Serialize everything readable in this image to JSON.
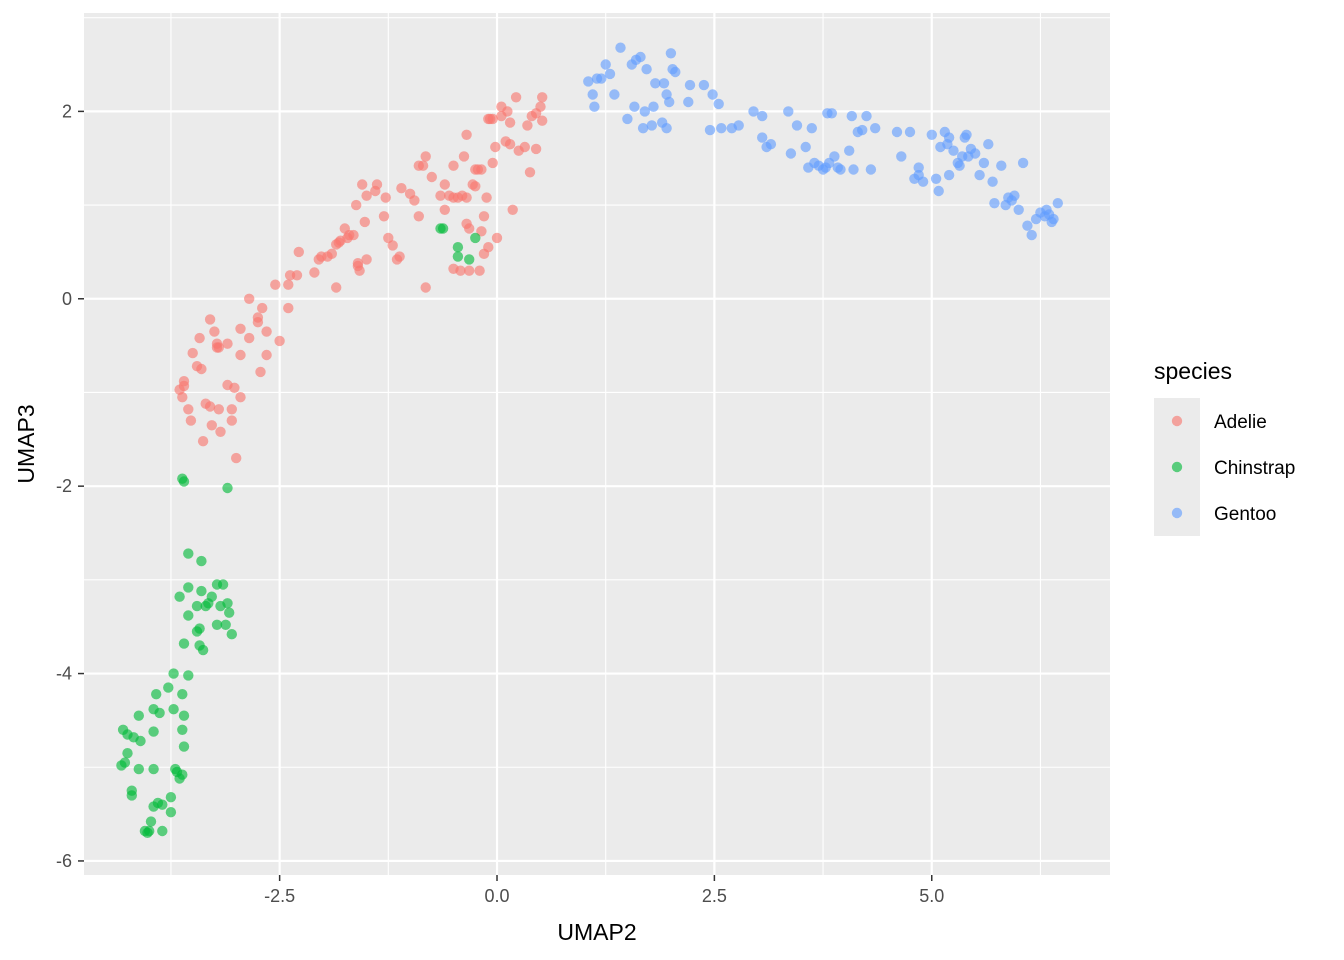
{
  "chart_data": {
    "type": "scatter",
    "xlabel": "UMAP2",
    "ylabel": "UMAP3",
    "xlim": [
      -4.75,
      7.05
    ],
    "ylim": [
      -6.15,
      3.05
    ],
    "x_ticks": [
      -2.5,
      0.0,
      2.5,
      5.0
    ],
    "x_tick_labels": [
      "-2.5",
      "0.0",
      "2.5",
      "5.0"
    ],
    "y_ticks": [
      -6,
      -4,
      -2,
      0,
      2
    ],
    "y_tick_labels": [
      "-6",
      "-4",
      "-2",
      "0",
      "2"
    ],
    "grid": true,
    "legend_title": "species",
    "legend_position": "right",
    "series": [
      {
        "name": "Adelie",
        "color": "#F8766D",
        "points": [
          [
            -3.65,
            -0.97
          ],
          [
            -3.6,
            -0.88
          ],
          [
            -3.6,
            -0.93
          ],
          [
            -3.62,
            -1.05
          ],
          [
            -3.55,
            -1.18
          ],
          [
            -3.52,
            -1.3
          ],
          [
            -3.5,
            -0.58
          ],
          [
            -3.45,
            -0.72
          ],
          [
            -3.42,
            -0.42
          ],
          [
            -3.4,
            -0.75
          ],
          [
            -3.38,
            -1.52
          ],
          [
            -3.35,
            -1.12
          ],
          [
            -3.3,
            -1.15
          ],
          [
            -3.3,
            -0.22
          ],
          [
            -3.28,
            -1.35
          ],
          [
            -3.25,
            -0.35
          ],
          [
            -3.22,
            -0.48
          ],
          [
            -3.22,
            -0.52
          ],
          [
            -3.2,
            -0.52
          ],
          [
            -3.2,
            -1.18
          ],
          [
            -3.18,
            -1.42
          ],
          [
            -3.1,
            -0.48
          ],
          [
            -3.1,
            -0.92
          ],
          [
            -3.05,
            -1.3
          ],
          [
            -3.05,
            -1.18
          ],
          [
            -3.02,
            -0.95
          ],
          [
            -3.0,
            -1.7
          ],
          [
            -2.95,
            -0.32
          ],
          [
            -2.95,
            -0.6
          ],
          [
            -2.95,
            -1.05
          ],
          [
            -2.85,
            -0.42
          ],
          [
            -2.85,
            0.0
          ],
          [
            -2.75,
            -0.25
          ],
          [
            -2.75,
            -0.2
          ],
          [
            -2.72,
            -0.78
          ],
          [
            -2.7,
            -0.1
          ],
          [
            -2.65,
            -0.35
          ],
          [
            -2.65,
            -0.6
          ],
          [
            -2.55,
            0.15
          ],
          [
            -2.5,
            -0.45
          ],
          [
            -2.4,
            -0.1
          ],
          [
            -2.4,
            0.15
          ],
          [
            -2.38,
            0.25
          ],
          [
            -2.3,
            0.25
          ],
          [
            -2.28,
            0.5
          ],
          [
            -2.1,
            0.28
          ],
          [
            -2.05,
            0.42
          ],
          [
            -2.02,
            0.45
          ],
          [
            -1.95,
            0.45
          ],
          [
            -1.9,
            0.48
          ],
          [
            -1.85,
            0.58
          ],
          [
            -1.85,
            0.12
          ],
          [
            -1.82,
            0.6
          ],
          [
            -1.8,
            0.62
          ],
          [
            -1.75,
            0.75
          ],
          [
            -1.72,
            0.65
          ],
          [
            -1.7,
            0.68
          ],
          [
            -1.65,
            0.68
          ],
          [
            -1.62,
            1.0
          ],
          [
            -1.6,
            0.35
          ],
          [
            -1.6,
            0.38
          ],
          [
            -1.58,
            0.3
          ],
          [
            -1.55,
            1.22
          ],
          [
            -1.52,
            0.82
          ],
          [
            -1.5,
            0.42
          ],
          [
            -1.5,
            1.1
          ],
          [
            -1.4,
            1.15
          ],
          [
            -1.38,
            1.22
          ],
          [
            -1.3,
            0.88
          ],
          [
            -1.28,
            1.08
          ],
          [
            -1.25,
            0.65
          ],
          [
            -1.2,
            0.57
          ],
          [
            -1.15,
            0.42
          ],
          [
            -1.12,
            0.45
          ],
          [
            -1.1,
            1.18
          ],
          [
            -1.0,
            1.12
          ],
          [
            -0.95,
            1.05
          ],
          [
            -0.9,
            1.42
          ],
          [
            -0.9,
            0.88
          ],
          [
            -0.85,
            1.42
          ],
          [
            -0.82,
            1.52
          ],
          [
            -0.82,
            0.12
          ],
          [
            -0.75,
            1.3
          ],
          [
            -0.65,
            1.1
          ],
          [
            -0.6,
            0.95
          ],
          [
            -0.6,
            1.22
          ],
          [
            -0.55,
            1.1
          ],
          [
            -0.5,
            0.32
          ],
          [
            -0.5,
            1.42
          ],
          [
            -0.5,
            1.08
          ],
          [
            -0.45,
            1.08
          ],
          [
            -0.42,
            0.3
          ],
          [
            -0.4,
            1.1
          ],
          [
            -0.38,
            1.52
          ],
          [
            -0.35,
            1.75
          ],
          [
            -0.35,
            0.8
          ],
          [
            -0.35,
            1.08
          ],
          [
            -0.32,
            0.3
          ],
          [
            -0.32,
            0.75
          ],
          [
            -0.28,
            1.22
          ],
          [
            -0.25,
            1.38
          ],
          [
            -0.25,
            1.2
          ],
          [
            -0.22,
            1.38
          ],
          [
            -0.2,
            0.3
          ],
          [
            -0.18,
            0.72
          ],
          [
            -0.18,
            1.38
          ],
          [
            -0.15,
            0.48
          ],
          [
            -0.15,
            0.88
          ],
          [
            -0.12,
            1.08
          ],
          [
            -0.1,
            0.55
          ],
          [
            -0.1,
            1.92
          ],
          [
            -0.08,
            1.92
          ],
          [
            -0.05,
            1.45
          ],
          [
            -0.05,
            1.92
          ],
          [
            -0.02,
            1.62
          ],
          [
            0.0,
            0.65
          ],
          [
            0.05,
            2.05
          ],
          [
            0.05,
            1.95
          ],
          [
            0.1,
            1.68
          ],
          [
            0.12,
            2.0
          ],
          [
            0.15,
            1.65
          ],
          [
            0.15,
            1.88
          ],
          [
            0.18,
            0.95
          ],
          [
            0.22,
            2.15
          ],
          [
            0.25,
            1.58
          ],
          [
            0.32,
            1.62
          ],
          [
            0.35,
            1.85
          ],
          [
            0.38,
            1.35
          ],
          [
            0.4,
            1.95
          ],
          [
            0.45,
            1.6
          ],
          [
            0.45,
            1.98
          ],
          [
            0.5,
            2.05
          ],
          [
            0.52,
            2.15
          ],
          [
            0.52,
            1.9
          ]
        ]
      },
      {
        "name": "Chinstrap",
        "color": "#00BA38",
        "points": [
          [
            -3.62,
            -1.92
          ],
          [
            -3.6,
            -1.95
          ],
          [
            -3.1,
            -2.02
          ],
          [
            -3.55,
            -2.72
          ],
          [
            -3.4,
            -2.8
          ],
          [
            -3.65,
            -3.18
          ],
          [
            -3.55,
            -3.08
          ],
          [
            -3.45,
            -3.28
          ],
          [
            -3.4,
            -3.12
          ],
          [
            -3.32,
            -3.25
          ],
          [
            -3.28,
            -3.18
          ],
          [
            -3.22,
            -3.05
          ],
          [
            -3.18,
            -3.28
          ],
          [
            -3.15,
            -3.05
          ],
          [
            -3.1,
            -3.25
          ],
          [
            -3.08,
            -3.35
          ],
          [
            -3.05,
            -3.58
          ],
          [
            -3.12,
            -3.48
          ],
          [
            -3.22,
            -3.48
          ],
          [
            -3.35,
            -3.28
          ],
          [
            -3.42,
            -3.52
          ],
          [
            -3.45,
            -3.55
          ],
          [
            -3.42,
            -3.7
          ],
          [
            -3.38,
            -3.75
          ],
          [
            -3.55,
            -3.38
          ],
          [
            -3.6,
            -3.68
          ],
          [
            -3.55,
            -4.02
          ],
          [
            -3.62,
            -4.22
          ],
          [
            -3.72,
            -4.0
          ],
          [
            -3.78,
            -4.15
          ],
          [
            -3.72,
            -4.38
          ],
          [
            -3.6,
            -4.45
          ],
          [
            -3.6,
            -4.78
          ],
          [
            -3.62,
            -4.6
          ],
          [
            -3.62,
            -5.08
          ],
          [
            -3.65,
            -5.12
          ],
          [
            -3.68,
            -5.05
          ],
          [
            -3.7,
            -5.02
          ],
          [
            -3.75,
            -5.32
          ],
          [
            -3.75,
            -5.48
          ],
          [
            -3.88,
            -4.42
          ],
          [
            -3.92,
            -4.22
          ],
          [
            -3.95,
            -4.38
          ],
          [
            -3.95,
            -4.62
          ],
          [
            -3.95,
            -5.02
          ],
          [
            -3.9,
            -5.38
          ],
          [
            -3.95,
            -5.42
          ],
          [
            -3.98,
            -5.58
          ],
          [
            -4.0,
            -5.68
          ],
          [
            -4.02,
            -5.7
          ],
          [
            -4.05,
            -5.68
          ],
          [
            -3.85,
            -5.4
          ],
          [
            -3.85,
            -5.68
          ],
          [
            -4.1,
            -4.72
          ],
          [
            -4.12,
            -4.45
          ],
          [
            -4.18,
            -4.68
          ],
          [
            -4.25,
            -4.65
          ],
          [
            -4.3,
            -4.6
          ],
          [
            -4.25,
            -4.85
          ],
          [
            -4.28,
            -4.95
          ],
          [
            -4.32,
            -4.98
          ],
          [
            -4.2,
            -5.25
          ],
          [
            -4.2,
            -5.3
          ],
          [
            -4.12,
            -5.02
          ],
          [
            -0.62,
            0.75
          ],
          [
            -0.65,
            0.75
          ],
          [
            -0.45,
            0.55
          ],
          [
            -0.45,
            0.45
          ],
          [
            -0.32,
            0.42
          ],
          [
            -0.25,
            0.65
          ]
        ]
      },
      {
        "name": "Gentoo",
        "color": "#619CFF",
        "points": [
          [
            1.05,
            2.32
          ],
          [
            1.1,
            2.18
          ],
          [
            1.12,
            2.05
          ],
          [
            1.15,
            2.35
          ],
          [
            1.2,
            2.35
          ],
          [
            1.25,
            2.5
          ],
          [
            1.3,
            2.4
          ],
          [
            1.35,
            2.18
          ],
          [
            1.42,
            2.68
          ],
          [
            1.5,
            1.92
          ],
          [
            1.55,
            2.5
          ],
          [
            1.58,
            2.05
          ],
          [
            1.6,
            2.55
          ],
          [
            1.65,
            2.58
          ],
          [
            1.68,
            1.82
          ],
          [
            1.7,
            2.0
          ],
          [
            1.72,
            2.45
          ],
          [
            1.78,
            1.85
          ],
          [
            1.8,
            2.05
          ],
          [
            1.82,
            2.3
          ],
          [
            1.9,
            1.88
          ],
          [
            1.92,
            2.3
          ],
          [
            1.95,
            1.82
          ],
          [
            1.95,
            2.18
          ],
          [
            1.98,
            2.1
          ],
          [
            2.0,
            2.62
          ],
          [
            2.02,
            2.45
          ],
          [
            2.05,
            2.42
          ],
          [
            2.2,
            2.1
          ],
          [
            2.22,
            2.28
          ],
          [
            2.38,
            2.28
          ],
          [
            2.45,
            1.8
          ],
          [
            2.48,
            2.18
          ],
          [
            2.55,
            2.08
          ],
          [
            2.58,
            1.82
          ],
          [
            2.7,
            1.82
          ],
          [
            2.78,
            1.85
          ],
          [
            2.95,
            2.0
          ],
          [
            3.05,
            1.95
          ],
          [
            3.05,
            1.72
          ],
          [
            3.1,
            1.62
          ],
          [
            3.15,
            1.65
          ],
          [
            3.35,
            2.0
          ],
          [
            3.38,
            1.55
          ],
          [
            3.45,
            1.85
          ],
          [
            3.55,
            1.62
          ],
          [
            3.58,
            1.4
          ],
          [
            3.62,
            1.82
          ],
          [
            3.65,
            1.45
          ],
          [
            3.7,
            1.42
          ],
          [
            3.75,
            1.38
          ],
          [
            3.78,
            1.4
          ],
          [
            3.8,
            1.98
          ],
          [
            3.82,
            1.45
          ],
          [
            3.85,
            1.98
          ],
          [
            3.88,
            1.52
          ],
          [
            3.92,
            1.4
          ],
          [
            3.95,
            1.38
          ],
          [
            4.05,
            1.58
          ],
          [
            4.08,
            1.95
          ],
          [
            4.1,
            1.38
          ],
          [
            4.15,
            1.78
          ],
          [
            4.2,
            1.8
          ],
          [
            4.25,
            1.95
          ],
          [
            4.3,
            1.38
          ],
          [
            4.35,
            1.82
          ],
          [
            4.6,
            1.78
          ],
          [
            4.65,
            1.52
          ],
          [
            4.75,
            1.78
          ],
          [
            4.8,
            1.28
          ],
          [
            4.85,
            1.32
          ],
          [
            4.85,
            1.4
          ],
          [
            4.9,
            1.25
          ],
          [
            5.0,
            1.75
          ],
          [
            5.05,
            1.28
          ],
          [
            5.08,
            1.15
          ],
          [
            5.1,
            1.62
          ],
          [
            5.15,
            1.78
          ],
          [
            5.18,
            1.65
          ],
          [
            5.2,
            1.72
          ],
          [
            5.2,
            1.32
          ],
          [
            5.25,
            1.58
          ],
          [
            5.3,
            1.45
          ],
          [
            5.32,
            1.42
          ],
          [
            5.35,
            1.52
          ],
          [
            5.38,
            1.72
          ],
          [
            5.4,
            1.75
          ],
          [
            5.42,
            1.52
          ],
          [
            5.45,
            1.6
          ],
          [
            5.5,
            1.55
          ],
          [
            5.55,
            1.32
          ],
          [
            5.6,
            1.45
          ],
          [
            5.65,
            1.65
          ],
          [
            5.7,
            1.25
          ],
          [
            5.72,
            1.02
          ],
          [
            5.8,
            1.42
          ],
          [
            5.85,
            1.0
          ],
          [
            5.88,
            1.08
          ],
          [
            5.92,
            1.05
          ],
          [
            5.95,
            1.1
          ],
          [
            6.0,
            0.95
          ],
          [
            6.05,
            1.45
          ],
          [
            6.1,
            0.78
          ],
          [
            6.15,
            0.68
          ],
          [
            6.25,
            0.92
          ],
          [
            6.3,
            0.88
          ],
          [
            6.32,
            0.95
          ],
          [
            6.35,
            0.9
          ],
          [
            6.38,
            0.82
          ],
          [
            6.4,
            0.85
          ],
          [
            6.45,
            1.02
          ],
          [
            6.2,
            0.85
          ]
        ]
      }
    ]
  }
}
